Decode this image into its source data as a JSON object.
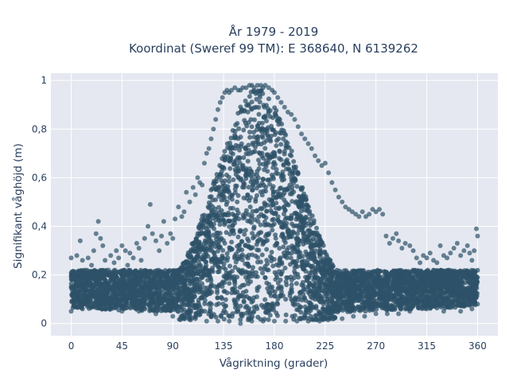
{
  "chart_data": {
    "type": "scatter",
    "title_line1": "År 1979 - 2019",
    "title_line2": "Koordinat (Sweref 99 TM): E 368640, N 6139262",
    "xlabel": "Vågriktning (grader)",
    "ylabel": "Signifikant våghöjd (m)",
    "xlim": [
      -18,
      378
    ],
    "ylim": [
      -0.05,
      1.03
    ],
    "x_ticks": [
      {
        "value": 0,
        "label": "0"
      },
      {
        "value": 45,
        "label": "45"
      },
      {
        "value": 90,
        "label": "90"
      },
      {
        "value": 135,
        "label": "135"
      },
      {
        "value": 180,
        "label": "180"
      },
      {
        "value": 225,
        "label": "225"
      },
      {
        "value": 270,
        "label": "270"
      },
      {
        "value": 315,
        "label": "315"
      },
      {
        "value": 360,
        "label": "360"
      }
    ],
    "y_ticks": [
      {
        "value": 0,
        "label": "0"
      },
      {
        "value": 0.2,
        "label": "0,2"
      },
      {
        "value": 0.4,
        "label": "0,4"
      },
      {
        "value": 0.6,
        "label": "0,6"
      },
      {
        "value": 0.8,
        "label": "0,8"
      },
      {
        "value": 1,
        "label": "1"
      }
    ],
    "grid": true,
    "marker_color": "#2e5268",
    "background_color": "#e5e8f0",
    "grid_color": "#ffffff",
    "points": [
      [
        0,
        0.27
      ],
      [
        2,
        0.21
      ],
      [
        5,
        0.28
      ],
      [
        8,
        0.34
      ],
      [
        10,
        0.26
      ],
      [
        12,
        0.22
      ],
      [
        15,
        0.27
      ],
      [
        18,
        0.24
      ],
      [
        20,
        0.3
      ],
      [
        22,
        0.37
      ],
      [
        24,
        0.42
      ],
      [
        26,
        0.35
      ],
      [
        28,
        0.32
      ],
      [
        30,
        0.26
      ],
      [
        33,
        0.22
      ],
      [
        35,
        0.28
      ],
      [
        38,
        0.25
      ],
      [
        40,
        0.3
      ],
      [
        42,
        0.27
      ],
      [
        45,
        0.32
      ],
      [
        48,
        0.3
      ],
      [
        50,
        0.24
      ],
      [
        52,
        0.29
      ],
      [
        55,
        0.27
      ],
      [
        58,
        0.33
      ],
      [
        60,
        0.31
      ],
      [
        62,
        0.26
      ],
      [
        65,
        0.35
      ],
      [
        68,
        0.4
      ],
      [
        70,
        0.49
      ],
      [
        72,
        0.37
      ],
      [
        75,
        0.34
      ],
      [
        78,
        0.3
      ],
      [
        80,
        0.36
      ],
      [
        82,
        0.42
      ],
      [
        85,
        0.33
      ],
      [
        88,
        0.37
      ],
      [
        90,
        0.35
      ],
      [
        92,
        0.43
      ],
      [
        95,
        0.48
      ],
      [
        98,
        0.44
      ],
      [
        100,
        0.46
      ],
      [
        102,
        0.54
      ],
      [
        105,
        0.5
      ],
      [
        108,
        0.56
      ],
      [
        110,
        0.53
      ],
      [
        112,
        0.6
      ],
      [
        114,
        0.58
      ],
      [
        116,
        0.57
      ],
      [
        118,
        0.66
      ],
      [
        120,
        0.7
      ],
      [
        122,
        0.72
      ],
      [
        124,
        0.76
      ],
      [
        126,
        0.8
      ],
      [
        128,
        0.84
      ],
      [
        130,
        0.88
      ],
      [
        132,
        0.91
      ],
      [
        134,
        0.93
      ],
      [
        136,
        0.95
      ],
      [
        138,
        0.96
      ],
      [
        140,
        0.95
      ],
      [
        142,
        0.96
      ],
      [
        145,
        0.97
      ],
      [
        148,
        0.96
      ],
      [
        150,
        0.96
      ],
      [
        152,
        0.97
      ],
      [
        155,
        0.97
      ],
      [
        158,
        0.98
      ],
      [
        160,
        0.98
      ],
      [
        162,
        0.97
      ],
      [
        165,
        0.98
      ],
      [
        168,
        0.98
      ],
      [
        170,
        0.97
      ],
      [
        172,
        0.98
      ],
      [
        175,
        0.97
      ],
      [
        178,
        0.96
      ],
      [
        180,
        0.95
      ],
      [
        183,
        0.93
      ],
      [
        186,
        0.91
      ],
      [
        189,
        0.89
      ],
      [
        192,
        0.87
      ],
      [
        195,
        0.86
      ],
      [
        198,
        0.84
      ],
      [
        201,
        0.81
      ],
      [
        204,
        0.78
      ],
      [
        207,
        0.76
      ],
      [
        210,
        0.74
      ],
      [
        213,
        0.72
      ],
      [
        216,
        0.69
      ],
      [
        219,
        0.67
      ],
      [
        222,
        0.65
      ],
      [
        225,
        0.66
      ],
      [
        228,
        0.62
      ],
      [
        231,
        0.58
      ],
      [
        234,
        0.55
      ],
      [
        237,
        0.52
      ],
      [
        240,
        0.5
      ],
      [
        243,
        0.48
      ],
      [
        246,
        0.47
      ],
      [
        249,
        0.46
      ],
      [
        252,
        0.45
      ],
      [
        255,
        0.44
      ],
      [
        258,
        0.46
      ],
      [
        261,
        0.44
      ],
      [
        264,
        0.45
      ],
      [
        267,
        0.47
      ],
      [
        270,
        0.46
      ],
      [
        273,
        0.47
      ],
      [
        276,
        0.45
      ],
      [
        279,
        0.36
      ],
      [
        282,
        0.33
      ],
      [
        285,
        0.35
      ],
      [
        288,
        0.37
      ],
      [
        290,
        0.34
      ],
      [
        293,
        0.31
      ],
      [
        296,
        0.33
      ],
      [
        300,
        0.32
      ],
      [
        303,
        0.3
      ],
      [
        306,
        0.27
      ],
      [
        309,
        0.25
      ],
      [
        312,
        0.28
      ],
      [
        315,
        0.27
      ],
      [
        318,
        0.29
      ],
      [
        321,
        0.26
      ],
      [
        324,
        0.25
      ],
      [
        327,
        0.32
      ],
      [
        330,
        0.28
      ],
      [
        333,
        0.27
      ],
      [
        336,
        0.29
      ],
      [
        339,
        0.31
      ],
      [
        342,
        0.33
      ],
      [
        345,
        0.28
      ],
      [
        348,
        0.3
      ],
      [
        351,
        0.32
      ],
      [
        353,
        0.29
      ],
      [
        355,
        0.26
      ],
      [
        357,
        0.3
      ],
      [
        359,
        0.39
      ],
      [
        360,
        0.36
      ],
      [
        0,
        0.05
      ],
      [
        5,
        0.07
      ],
      [
        10,
        0.06
      ],
      [
        20,
        0.07
      ],
      [
        30,
        0.06
      ],
      [
        45,
        0.05
      ],
      [
        60,
        0.05
      ],
      [
        75,
        0.04
      ],
      [
        90,
        0.03
      ],
      [
        100,
        0.02
      ],
      [
        110,
        0.02
      ],
      [
        120,
        0.01
      ],
      [
        130,
        0.01
      ],
      [
        140,
        0.01
      ],
      [
        150,
        0.0
      ],
      [
        160,
        0.01
      ],
      [
        170,
        0.01
      ],
      [
        180,
        0.01
      ],
      [
        190,
        0.01
      ],
      [
        200,
        0.01
      ],
      [
        210,
        0.01
      ],
      [
        220,
        0.01
      ],
      [
        230,
        0.02
      ],
      [
        240,
        0.02
      ],
      [
        250,
        0.03
      ],
      [
        260,
        0.03
      ],
      [
        270,
        0.04
      ],
      [
        280,
        0.04
      ],
      [
        290,
        0.04
      ],
      [
        300,
        0.05
      ],
      [
        315,
        0.06
      ],
      [
        330,
        0.05
      ],
      [
        345,
        0.05
      ],
      [
        355,
        0.06
      ],
      [
        360,
        0.08
      ]
    ]
  }
}
